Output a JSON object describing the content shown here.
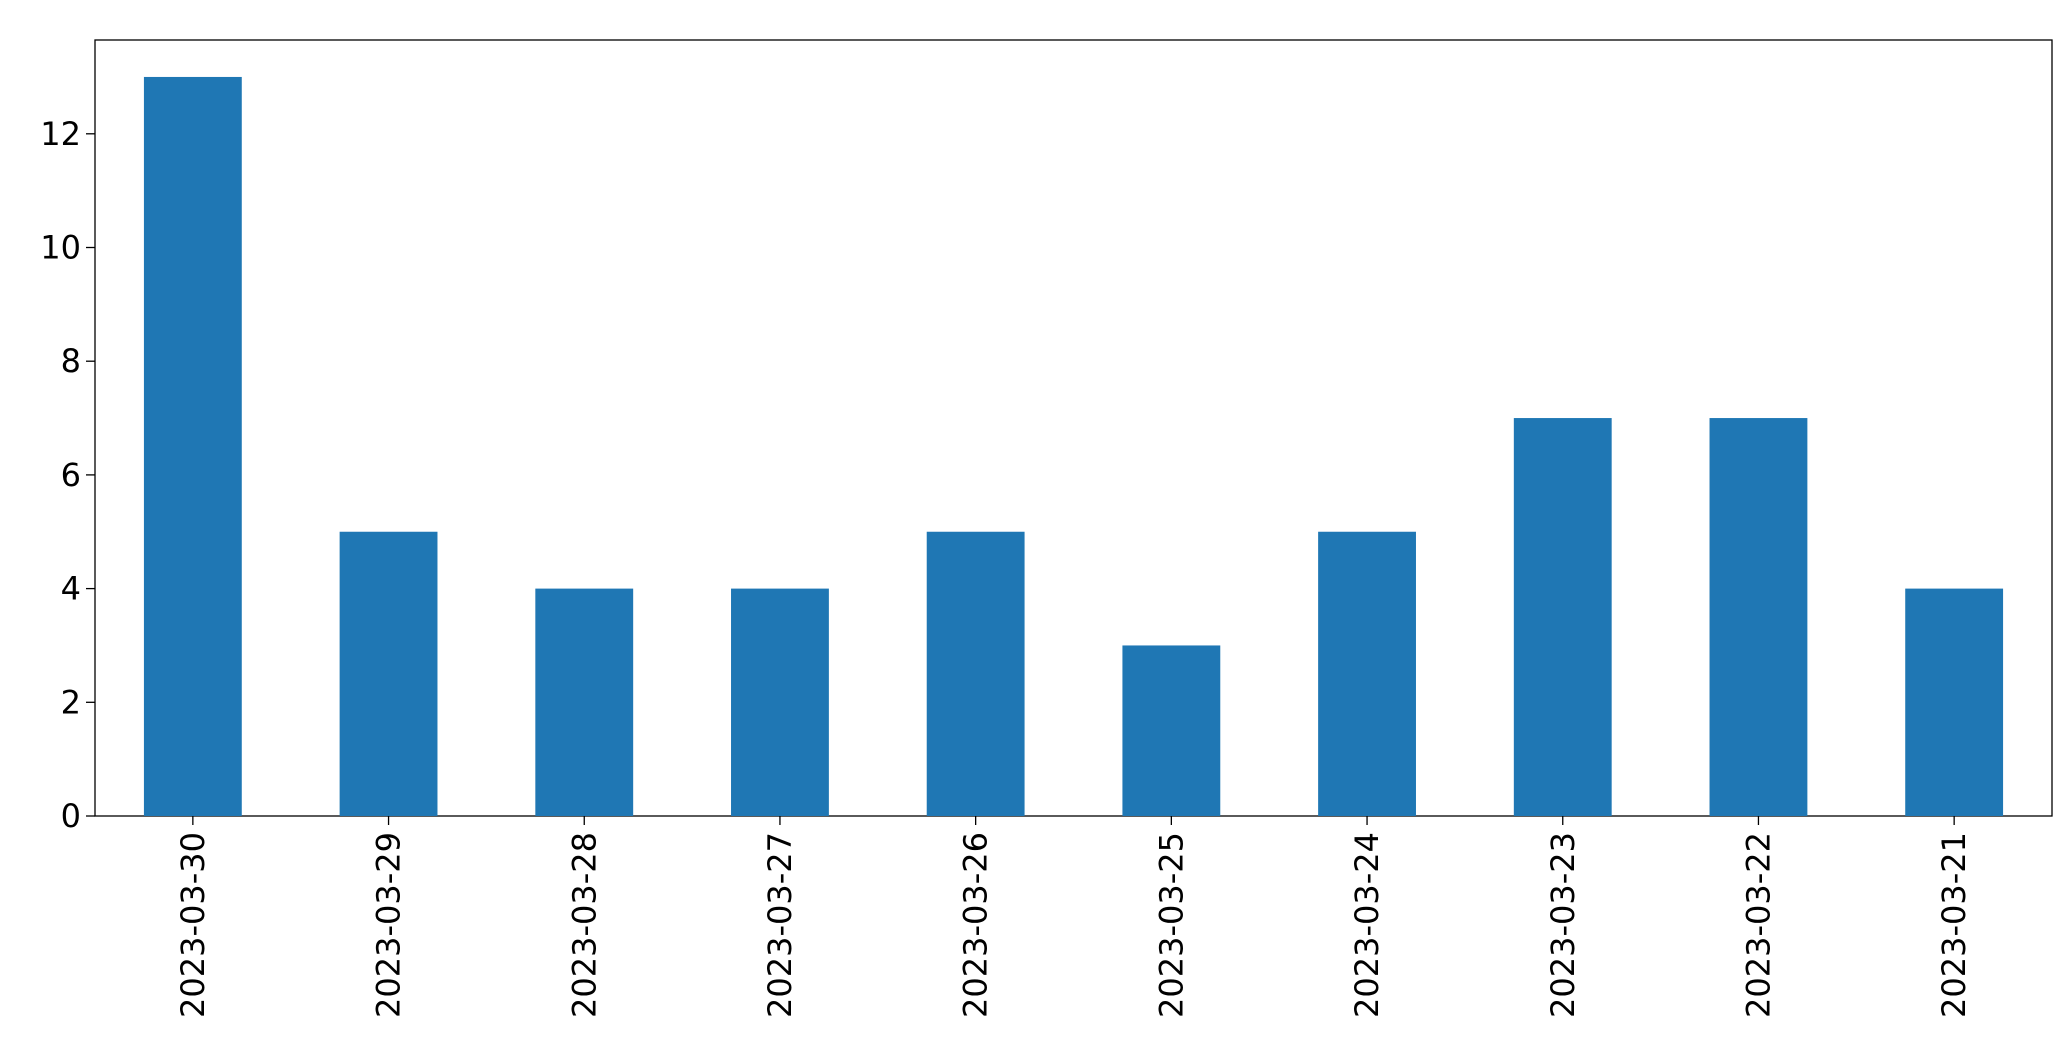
{
  "chart_data": {
    "type": "bar",
    "categories": [
      "2023-03-30",
      "2023-03-29",
      "2023-03-28",
      "2023-03-27",
      "2023-03-26",
      "2023-03-25",
      "2023-03-24",
      "2023-03-23",
      "2023-03-22",
      "2023-03-21"
    ],
    "values": [
      13,
      5,
      4,
      4,
      5,
      3,
      5,
      7,
      7,
      4
    ],
    "color": "#1f77b4",
    "ylim": [
      0,
      13.65
    ],
    "yticks": [
      0,
      2,
      4,
      6,
      8,
      10,
      12
    ],
    "grid": false
  }
}
